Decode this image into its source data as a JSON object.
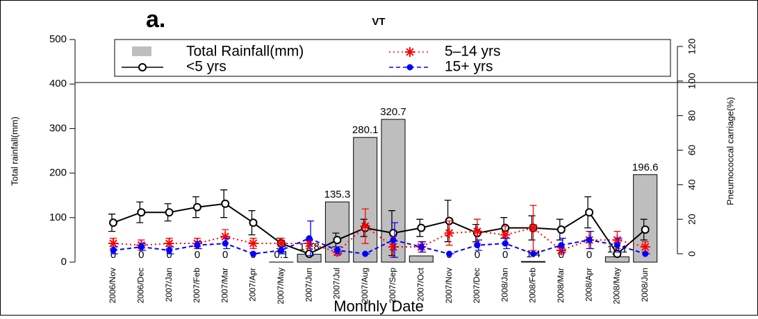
{
  "chart_data": {
    "type": "bar",
    "panel_label": "a.",
    "title": "VT",
    "xlabel": "Monthly Date",
    "ylabel": "Total rainfall(mm)",
    "y2label": "Pneumococcal carriage(%)",
    "bar_name": "Total Rainfall(mm)",
    "color": "#bebebe",
    "categories": [
      "2006/Nov",
      "2006/Dec",
      "2007/Jan",
      "2007/Feb",
      "2007/Mar",
      "2007/Apr",
      "2007/May",
      "2007/Jun",
      "2007/Jul",
      "2007/Aug",
      "2007/Sep",
      "2007/Oct",
      "2007/Nov",
      "2007/Dec",
      "2008/Jan",
      "2008/Feb",
      "2008/Mar",
      "2008/Apr",
      "2008/May",
      "2008/Jun"
    ],
    "values": [
      0,
      0,
      0,
      0,
      0,
      0,
      0.1,
      17.8,
      135.3,
      280.1,
      320.7,
      14,
      0,
      0,
      0,
      1.4,
      0,
      0,
      12.1,
      196.6
    ],
    "value_labels": [
      "0",
      "0",
      "0",
      "0",
      "0",
      "0",
      "0.1",
      "17.8",
      "135.3",
      "280.1",
      "320.7",
      null,
      "0",
      "0",
      "0",
      "1.4",
      "0",
      "0",
      "12.1",
      "196.6"
    ],
    "ylim": [
      0,
      500
    ],
    "yticks": [
      0,
      100,
      200,
      300,
      400,
      500
    ],
    "y2lim": [
      0,
      120
    ],
    "y2ticks": [
      0,
      20,
      40,
      60,
      80,
      100,
      120
    ],
    "series": [
      {
        "name": "<5 yrs",
        "color": "#000000",
        "axis": "y2",
        "marker": "open-circle",
        "dash": "",
        "values": [
          18,
          24,
          24,
          27,
          29,
          18,
          6,
          0,
          8,
          15,
          12,
          15,
          19,
          12,
          15,
          15,
          14,
          24,
          0,
          14
        ],
        "errors": [
          5,
          6,
          5,
          6,
          8,
          7,
          3,
          0,
          4,
          5,
          13,
          5,
          12,
          5,
          6,
          7,
          6,
          9,
          0,
          6
        ]
      },
      {
        "name": "5–14 yrs",
        "color": "#ff0000",
        "axis": "y2",
        "marker": "star",
        "dash": "2 4",
        "values": [
          6,
          5,
          6,
          6,
          10,
          6,
          6,
          6,
          1,
          16,
          4,
          4,
          12,
          13,
          11,
          15,
          2,
          8,
          8,
          4
        ],
        "errors": [
          3,
          3,
          3,
          3,
          4,
          3,
          3,
          3,
          2,
          10,
          6,
          3,
          7,
          7,
          5,
          13,
          2,
          5,
          5,
          3
        ]
      },
      {
        "name": "15+ yrs",
        "color": "#0000ff",
        "axis": "y2",
        "marker": "dot",
        "dash": "6 4",
        "values": [
          2,
          4,
          2,
          5,
          6,
          0,
          2,
          9,
          2,
          0,
          8,
          4,
          0,
          5,
          6,
          0,
          5,
          8,
          5,
          0
        ],
        "errors": [
          2,
          2,
          2,
          2,
          3,
          0,
          2,
          10,
          2,
          0,
          10,
          3,
          0,
          3,
          3,
          0,
          4,
          5,
          4,
          0
        ]
      }
    ]
  }
}
